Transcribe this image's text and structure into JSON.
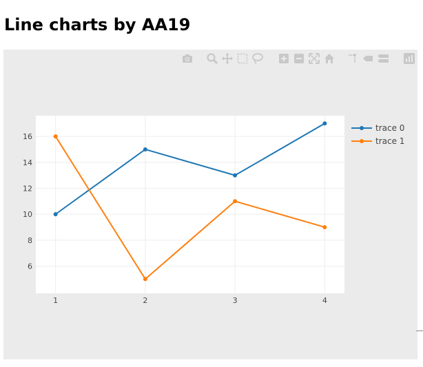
{
  "page": {
    "title": "Line charts by AA19"
  },
  "modebar": {
    "buttons": [
      {
        "name": "camera-icon",
        "x": 0
      },
      {
        "name": "zoom-icon",
        "x": 36
      },
      {
        "name": "pan-icon",
        "x": 58
      },
      {
        "name": "box-select-icon",
        "x": 80
      },
      {
        "name": "lasso-select-icon",
        "x": 102
      },
      {
        "name": "zoom-in-icon",
        "x": 140
      },
      {
        "name": "zoom-out-icon",
        "x": 162
      },
      {
        "name": "autoscale-icon",
        "x": 184
      },
      {
        "name": "home-icon",
        "x": 206
      },
      {
        "name": "spike-lines-icon",
        "x": 240
      },
      {
        "name": "hover-closest-icon",
        "x": 262
      },
      {
        "name": "hover-compare-icon",
        "x": 284
      },
      {
        "name": "plotly-logo-icon",
        "x": 322
      }
    ]
  },
  "colors": {
    "panel_bg": "#ebebeb",
    "plot_bg": "#ffffff",
    "grid": "#eeeeee",
    "trace0": "#1f77b4",
    "trace1": "#ff7f0e",
    "icon": "#c8c8c8"
  },
  "chart_data": {
    "type": "line",
    "title": "",
    "xlabel": "",
    "ylabel": "",
    "x": [
      1,
      2,
      3,
      4
    ],
    "series": [
      {
        "name": "trace 0",
        "values": [
          10,
          15,
          13,
          17
        ],
        "color": "#1f77b4"
      },
      {
        "name": "trace 1",
        "values": [
          16,
          5,
          11,
          9
        ],
        "color": "#ff7f0e"
      }
    ],
    "xlim": [
      0.78,
      4.22
    ],
    "ylim": [
      3.9,
      17.6
    ],
    "x_ticks": [
      1,
      2,
      3,
      4
    ],
    "y_ticks": [
      6,
      8,
      10,
      12,
      14,
      16
    ],
    "grid": true,
    "legend": "top-right",
    "markers": true
  }
}
